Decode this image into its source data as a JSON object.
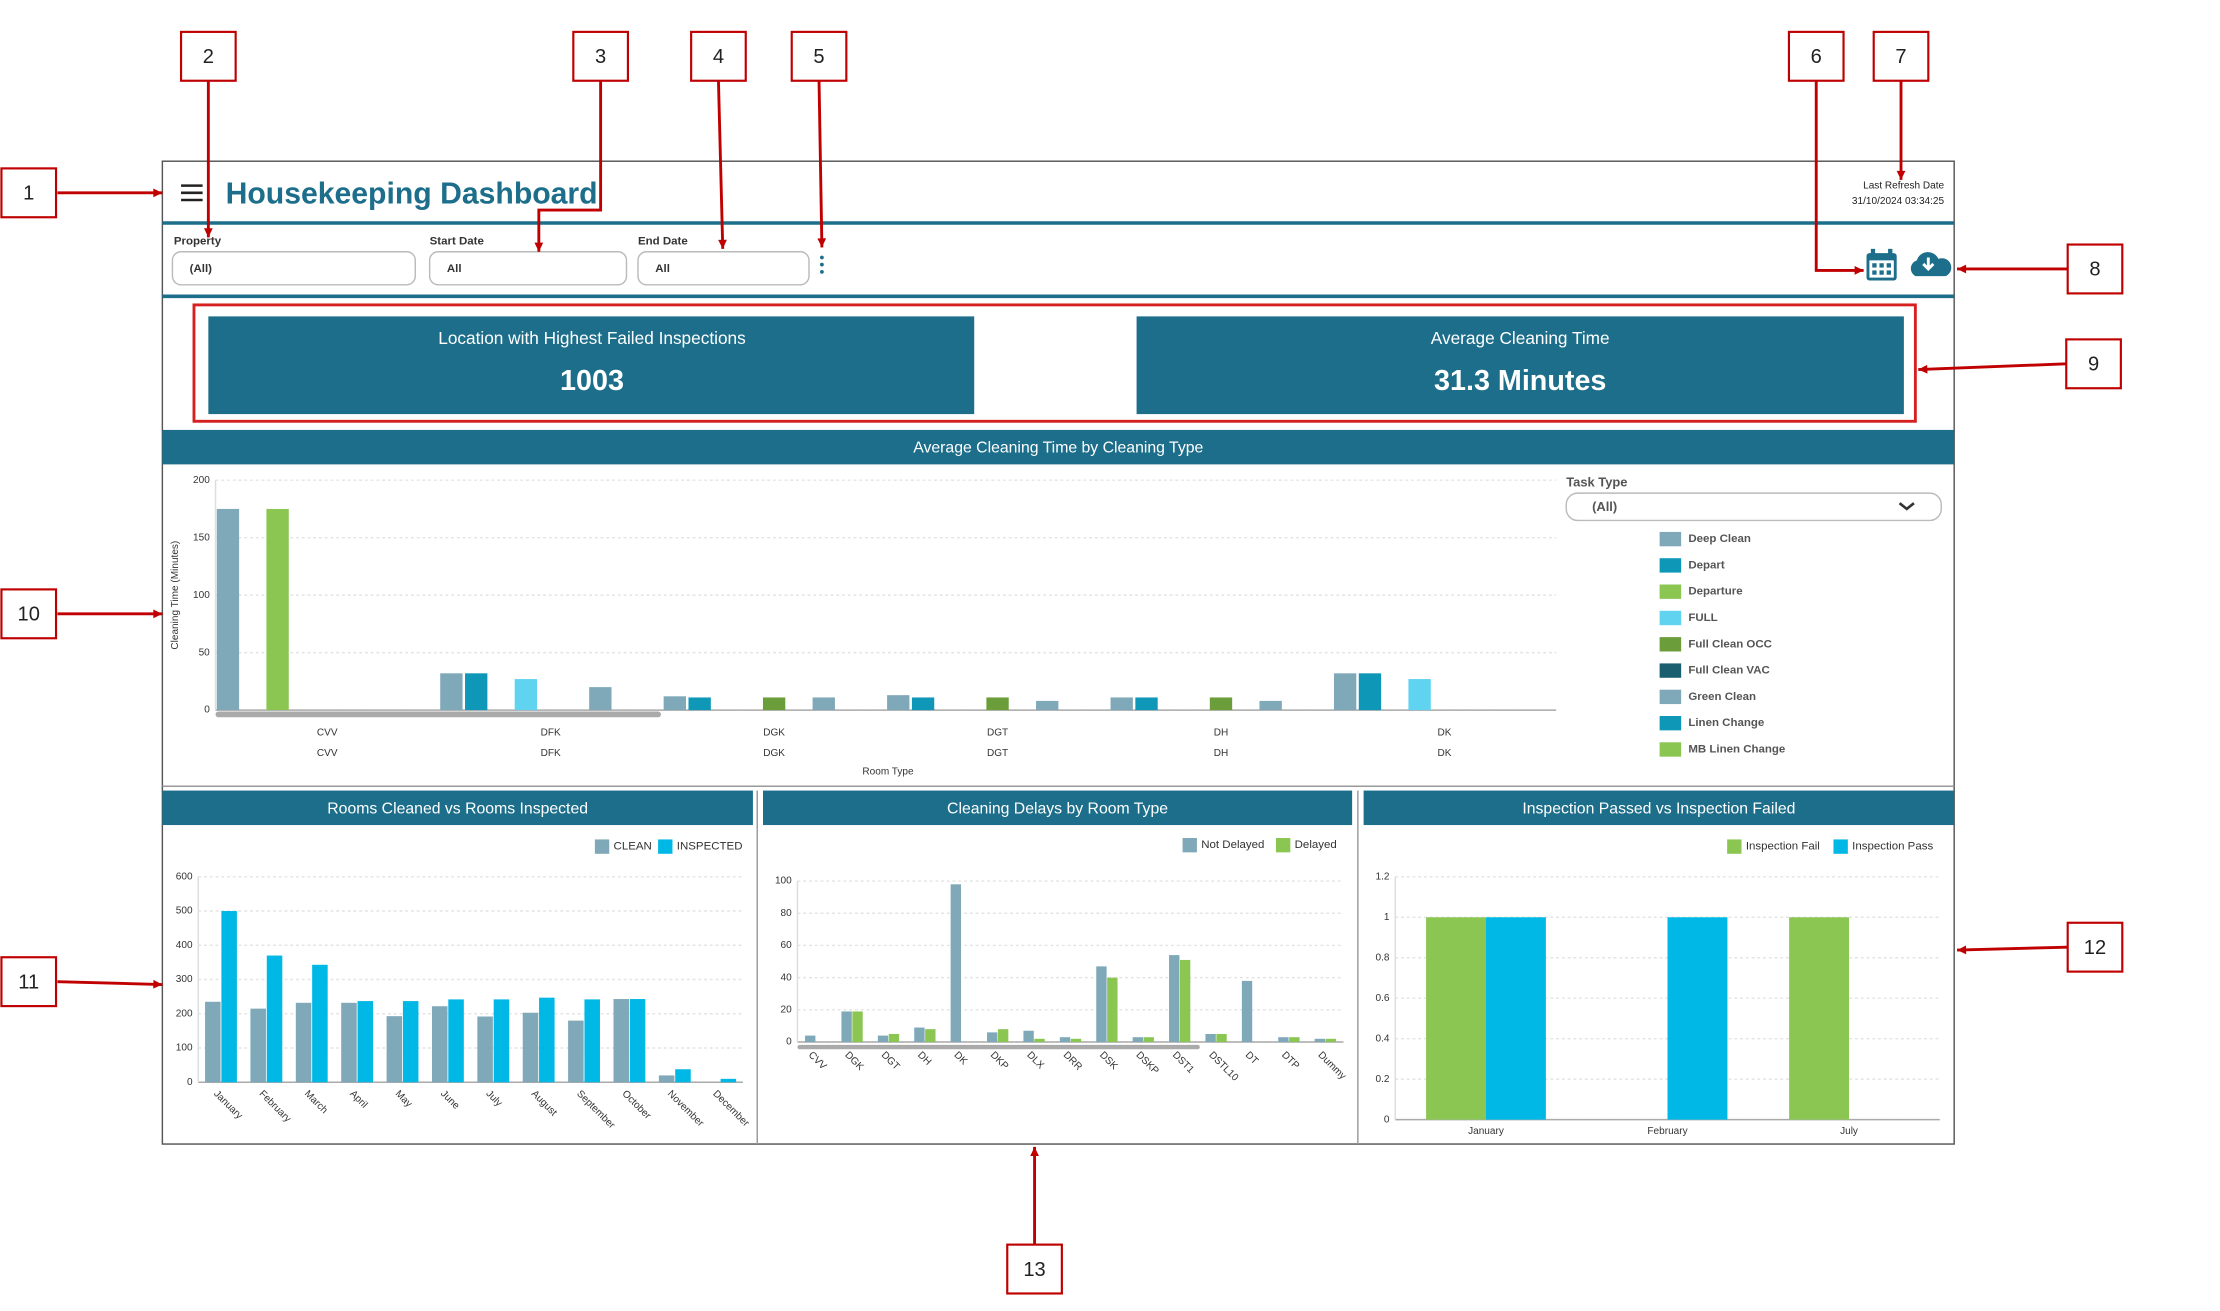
{
  "header": {
    "title": "Housekeeping Dashboard",
    "refresh_label": "Last Refresh Date",
    "refresh_date": "31/10/2024 03:34:25"
  },
  "filters": [
    {
      "label": "Property",
      "value": "(All)"
    },
    {
      "label": "Start Date",
      "value": "All"
    },
    {
      "label": "End Date",
      "value": "All"
    }
  ],
  "kpis": [
    {
      "label": "Location with Highest Failed Inspections",
      "value": 1003
    },
    {
      "label": "Average Cleaning Time",
      "value": "31.3 Minutes"
    }
  ],
  "callouts": [
    "1",
    "2",
    "3",
    "4",
    "5",
    "6",
    "7",
    "8",
    "9",
    "10",
    "11",
    "12",
    "13"
  ],
  "chart_data": [
    {
      "type": "bar",
      "title": "Average Cleaning Time by Cleaning Type",
      "y_label": "Cleaning Time (Minutes)",
      "x_label": "Room Type",
      "legend_title": "Task Type",
      "dropdown": "(All)",
      "categories": [
        "CVV",
        "DFK",
        "DGK",
        "DGT",
        "DH",
        "DK"
      ],
      "ylim": [
        0,
        200
      ],
      "yticks": [
        0,
        50,
        100,
        150,
        200
      ],
      "grid": true,
      "series": [
        {
          "name": "Deep Clean",
          "color": "#7fa9b8",
          "values": [
            175,
            32,
            12,
            13,
            11,
            32
          ]
        },
        {
          "name": "Depart",
          "color": "#0f97b8",
          "values": [
            null,
            32,
            11,
            11,
            11,
            32
          ]
        },
        {
          "name": "Departure",
          "color": "#8bc653",
          "values": [
            175,
            null,
            null,
            null,
            null,
            null
          ]
        },
        {
          "name": "FULL",
          "color": "#5fd3ef",
          "values": [
            null,
            27,
            null,
            null,
            null,
            27
          ]
        },
        {
          "name": "Full Clean OCC",
          "color": "#6b9e3a",
          "values": [
            null,
            null,
            11,
            11,
            11,
            null
          ]
        },
        {
          "name": "Full Clean VAC",
          "color": "#1a5f70",
          "values": [
            null,
            null,
            null,
            null,
            null,
            null
          ]
        },
        {
          "name": "Green Clean",
          "color": "#7fa9b8",
          "values": [
            null,
            20,
            11,
            8,
            8,
            null
          ]
        },
        {
          "name": "Linen Change",
          "color": "#0f97b8",
          "values": [
            null,
            null,
            null,
            null,
            null,
            null
          ]
        },
        {
          "name": "MB Linen Change",
          "color": "#8bc653",
          "values": [
            null,
            null,
            null,
            null,
            null,
            null
          ]
        }
      ]
    },
    {
      "type": "bar",
      "title": "Rooms Cleaned vs Rooms Inspected",
      "categories": [
        "January",
        "February",
        "March",
        "April",
        "May",
        "June",
        "July",
        "August",
        "September",
        "October",
        "November",
        "December"
      ],
      "ylim": [
        0,
        600
      ],
      "yticks": [
        0,
        100,
        200,
        300,
        400,
        500,
        600
      ],
      "grid": true,
      "series": [
        {
          "name": "CLEAN",
          "color": "#7fa9b8",
          "values": [
            235,
            215,
            232,
            232,
            193,
            222,
            192,
            203,
            180,
            243,
            20,
            null
          ]
        },
        {
          "name": "INSPECTED",
          "color": "#00b8e6",
          "values": [
            500,
            370,
            343,
            237,
            237,
            242,
            242,
            247,
            242,
            243,
            38,
            10
          ]
        }
      ]
    },
    {
      "type": "bar",
      "title": "Cleaning Delays by Room Type",
      "categories": [
        "CVV",
        "DGK",
        "DGT",
        "DH",
        "DK",
        "DKP",
        "DLX",
        "DRR",
        "DSK",
        "DSKP",
        "DST1",
        "DSTL10",
        "DT",
        "DTP",
        "Dummy"
      ],
      "ylim": [
        0,
        100
      ],
      "yticks": [
        0,
        20,
        40,
        60,
        80,
        100
      ],
      "grid": true,
      "series": [
        {
          "name": "Not Delayed",
          "color": "#7fa9b8",
          "values": [
            4,
            19,
            4,
            9,
            98,
            6,
            7,
            3,
            47,
            3,
            54,
            5,
            38,
            3,
            2
          ]
        },
        {
          "name": "Delayed",
          "color": "#8bc653",
          "values": [
            null,
            19,
            5,
            8,
            null,
            8,
            2,
            2,
            40,
            3,
            51,
            5,
            null,
            3,
            2
          ]
        }
      ]
    },
    {
      "type": "bar",
      "title": "Inspection Passed vs Inspection Failed",
      "categories": [
        "January",
        "February",
        "July"
      ],
      "ylim": [
        0,
        1.2
      ],
      "yticks": [
        0,
        0.2,
        0.4,
        0.6,
        0.8,
        1,
        1.2
      ],
      "grid": true,
      "series": [
        {
          "name": "Inspection Fail",
          "color": "#8bc653",
          "values": [
            1,
            null,
            1
          ]
        },
        {
          "name": "Inspection Pass",
          "color": "#00b8e6",
          "values": [
            1,
            1,
            null
          ]
        }
      ]
    }
  ]
}
